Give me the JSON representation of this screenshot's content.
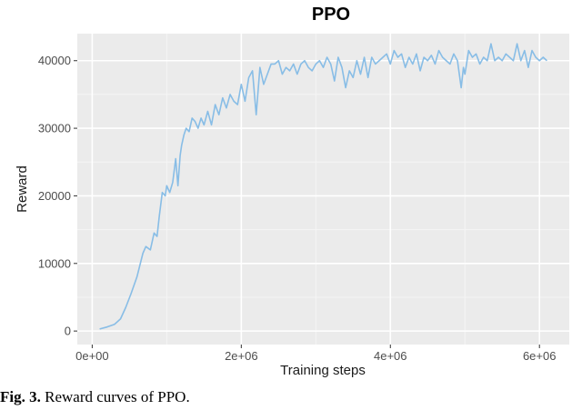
{
  "caption": {
    "label": "Fig. 3.",
    "text": " Reward curves of PPO."
  },
  "chart_data": {
    "type": "line",
    "title": "PPO",
    "xlabel": "Training steps",
    "ylabel": "Reward",
    "xlim": [
      -200000,
      6400000
    ],
    "ylim": [
      -2000,
      44000
    ],
    "x_ticks": [
      {
        "value": 0,
        "label": "0e+00"
      },
      {
        "value": 2000000,
        "label": "2e+06"
      },
      {
        "value": 4000000,
        "label": "4e+06"
      },
      {
        "value": 6000000,
        "label": "6e+06"
      }
    ],
    "y_ticks": [
      {
        "value": 0,
        "label": "0"
      },
      {
        "value": 10000,
        "label": "10000"
      },
      {
        "value": 20000,
        "label": "20000"
      },
      {
        "value": 30000,
        "label": "30000"
      },
      {
        "value": 40000,
        "label": "40000"
      }
    ],
    "grid": true,
    "panel_color": "#ebebeb",
    "line_color": "#88bde6",
    "series": [
      {
        "x": [
          100000,
          200000,
          300000,
          380000,
          450000,
          520000,
          600000,
          680000,
          720000,
          780000,
          830000,
          870000,
          900000,
          940000,
          980000,
          1000000,
          1040000,
          1080000,
          1120000,
          1150000,
          1180000,
          1200000,
          1230000,
          1260000,
          1300000,
          1340000,
          1380000,
          1420000,
          1460000,
          1500000,
          1550000,
          1600000,
          1650000,
          1700000,
          1750000,
          1800000,
          1850000,
          1900000,
          1950000,
          2000000,
          2050000,
          2100000,
          2150000,
          2200000,
          2250000,
          2300000,
          2350000,
          2400000,
          2450000,
          2500000,
          2550000,
          2600000,
          2650000,
          2700000,
          2750000,
          2800000,
          2850000,
          2900000,
          2950000,
          3000000,
          3050000,
          3100000,
          3150000,
          3200000,
          3250000,
          3300000,
          3350000,
          3400000,
          3450000,
          3500000,
          3550000,
          3600000,
          3650000,
          3700000,
          3750000,
          3800000,
          3850000,
          3900000,
          3950000,
          4000000,
          4050000,
          4100000,
          4150000,
          4200000,
          4250000,
          4300000,
          4350000,
          4400000,
          4450000,
          4500000,
          4550000,
          4600000,
          4650000,
          4700000,
          4750000,
          4800000,
          4850000,
          4900000,
          4950000,
          4980000,
          5000000,
          5050000,
          5100000,
          5150000,
          5200000,
          5250000,
          5300000,
          5350000,
          5400000,
          5450000,
          5500000,
          5550000,
          5600000,
          5650000,
          5700000,
          5750000,
          5800000,
          5850000,
          5900000,
          5950000,
          6000000,
          6050000,
          6100000
        ],
        "y": [
          300,
          600,
          1000,
          1800,
          3500,
          5500,
          8000,
          11500,
          12500,
          12000,
          14500,
          14000,
          17000,
          20500,
          20000,
          21500,
          20500,
          22000,
          25500,
          21500,
          26000,
          27500,
          29000,
          30000,
          29500,
          31500,
          31000,
          30000,
          31500,
          30500,
          32500,
          30500,
          33500,
          32000,
          34500,
          33000,
          35000,
          34000,
          33500,
          36500,
          34000,
          37500,
          38500,
          32000,
          39000,
          36500,
          38000,
          39500,
          39500,
          40000,
          38000,
          39000,
          38500,
          39500,
          38000,
          39500,
          40000,
          39000,
          38500,
          39500,
          40000,
          39000,
          40500,
          39500,
          37000,
          40500,
          39000,
          36000,
          38500,
          37500,
          40000,
          38000,
          40500,
          37500,
          40500,
          39500,
          40000,
          40500,
          41000,
          39500,
          41500,
          40500,
          41000,
          39000,
          40500,
          39500,
          41000,
          38500,
          40500,
          40000,
          40800,
          39500,
          41500,
          40500,
          40000,
          39500,
          41000,
          40000,
          36000,
          39000,
          38000,
          41500,
          40500,
          41000,
          39500,
          40500,
          40000,
          42500,
          40000,
          40500,
          40000,
          41000,
          40500,
          40000,
          42500,
          40000,
          41500,
          39000,
          41500,
          40500,
          40000,
          40500,
          40000
        ]
      }
    ]
  }
}
